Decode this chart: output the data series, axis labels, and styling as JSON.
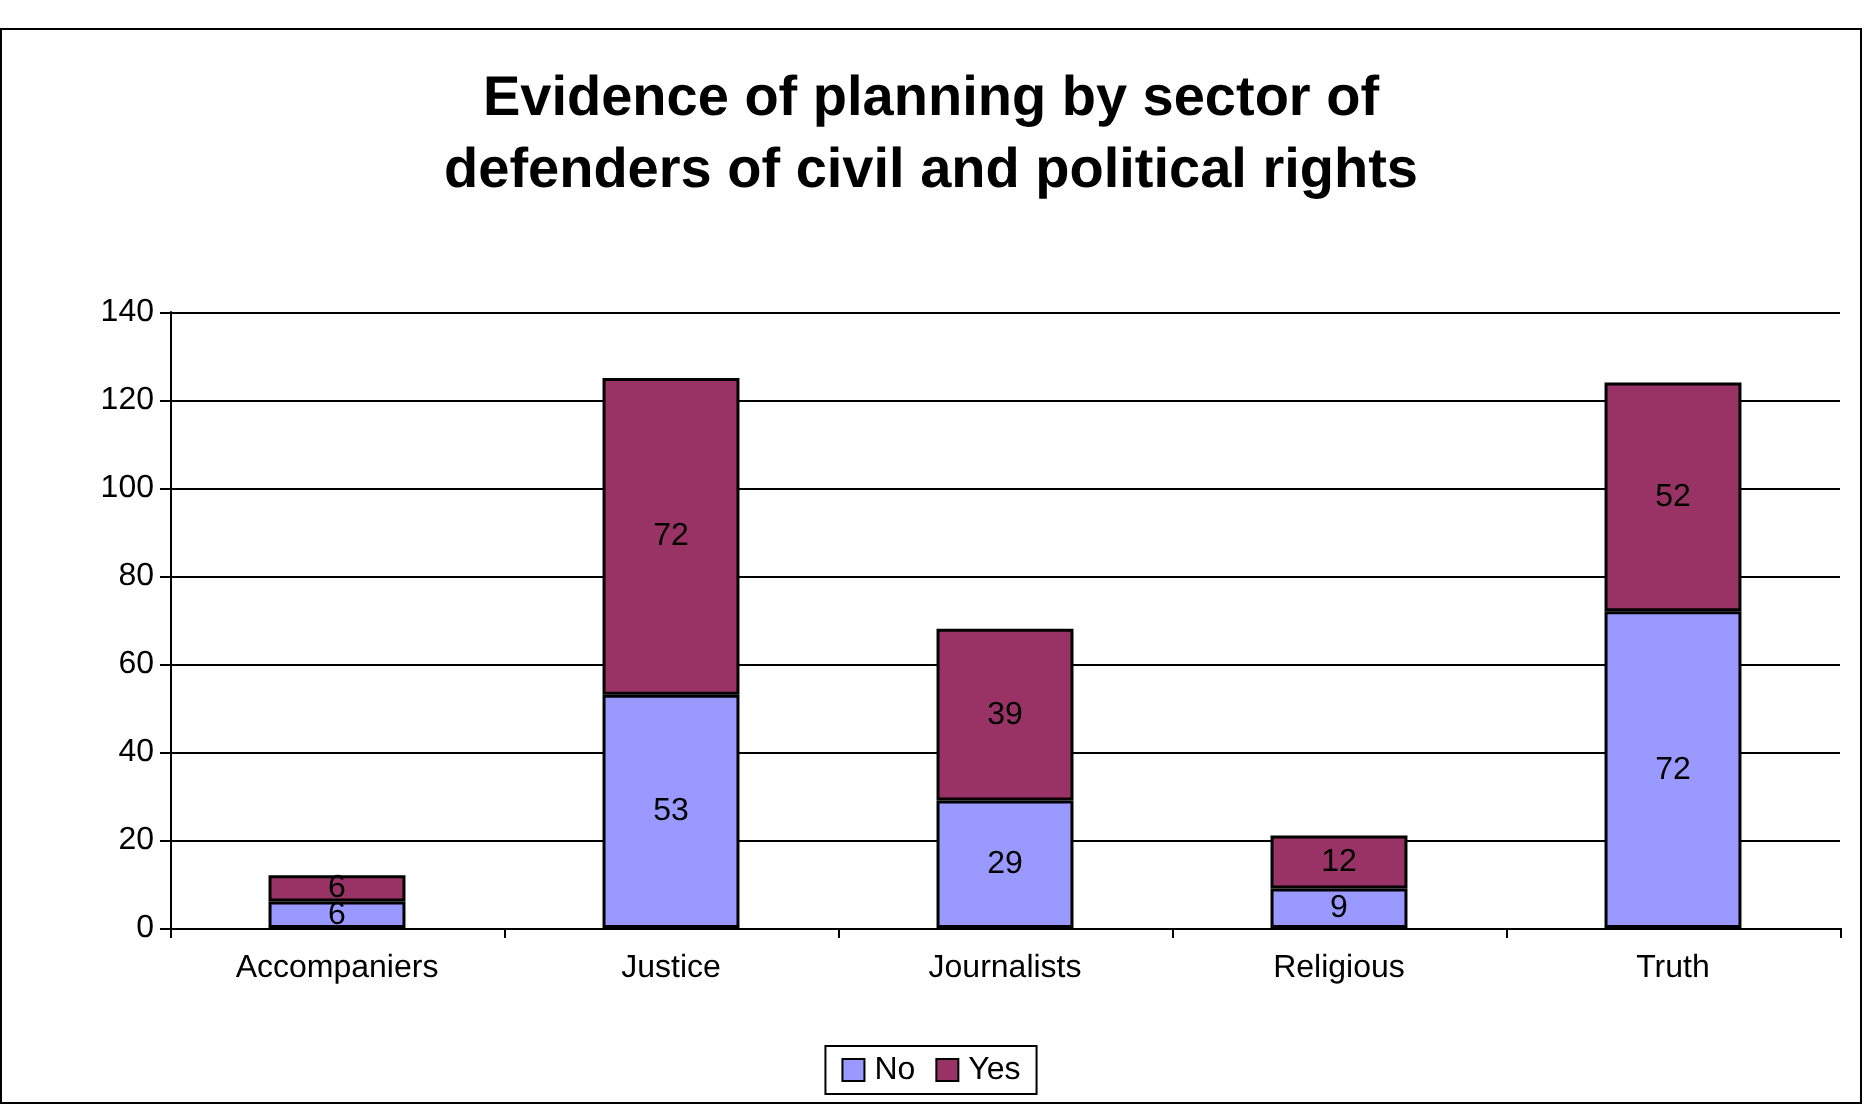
{
  "chart_data": {
    "type": "bar",
    "title": "Evidence of planning by sector of\ndefenders of civil and political rights",
    "categories": [
      "Accompaniers",
      "Justice",
      "Journalists",
      "Religious",
      "Truth"
    ],
    "series": [
      {
        "name": "No",
        "color": "#9999ff",
        "values": [
          6,
          53,
          29,
          9,
          72
        ]
      },
      {
        "name": "Yes",
        "color": "#993366",
        "values": [
          6,
          72,
          39,
          12,
          52
        ]
      }
    ],
    "stacked": true,
    "ylim": [
      0,
      140
    ],
    "yticks": [
      0,
      20,
      40,
      60,
      80,
      100,
      120,
      140
    ],
    "grid": "y",
    "legend": "bottom",
    "data_labels": true
  }
}
